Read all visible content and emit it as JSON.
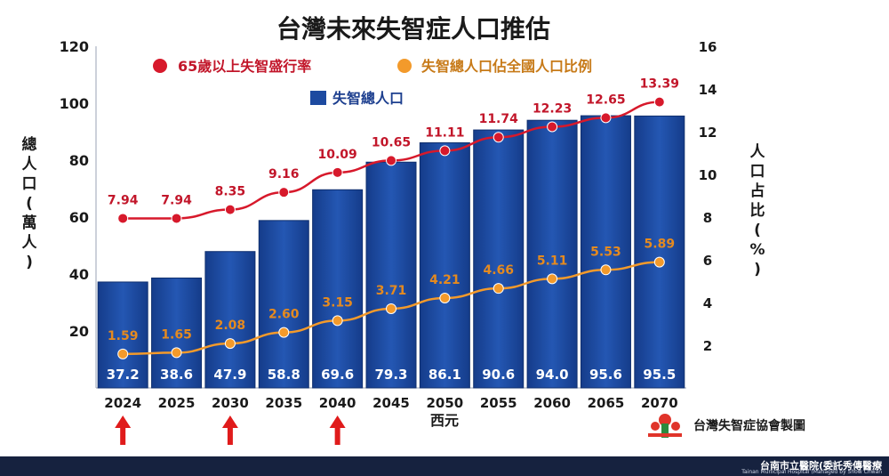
{
  "chart_data": {
    "type": "bar",
    "title": "台灣未來失智症人口推估",
    "categories": [
      "2024",
      "2025",
      "2030",
      "2035",
      "2040",
      "2045",
      "2050",
      "2055",
      "2060",
      "2065",
      "2070"
    ],
    "xlabel": "西元",
    "ylabel_left": "總人口(萬人)",
    "ylabel_right": "人口占比(%)",
    "ylim_left": [
      0,
      120
    ],
    "yticks_left": [
      "20",
      "40",
      "60",
      "80",
      "100",
      "120"
    ],
    "ylim_right": [
      0,
      16
    ],
    "yticks_right": [
      "2",
      "4",
      "6",
      "8",
      "10",
      "12",
      "14",
      "16"
    ],
    "legend_position": "top",
    "series": [
      {
        "name": "失智總人口",
        "type": "bar",
        "axis": "left",
        "color": "#1d4aa0",
        "values": [
          37.2,
          38.6,
          47.9,
          58.8,
          69.6,
          79.3,
          86.1,
          90.6,
          94.0,
          95.6,
          95.5
        ],
        "labels": [
          "37.2",
          "38.6",
          "47.9",
          "58.8",
          "69.6",
          "79.3",
          "86.1",
          "90.6",
          "94.0",
          "95.6",
          "95.5"
        ]
      },
      {
        "name": "65歲以上失智盛行率",
        "type": "line",
        "axis": "right",
        "color": "#d7192b",
        "values": [
          7.94,
          7.94,
          8.35,
          9.16,
          10.09,
          10.65,
          11.11,
          11.74,
          12.23,
          12.65,
          13.39
        ],
        "labels": [
          "7.94",
          "7.94",
          "8.35",
          "9.16",
          "10.09",
          "10.65",
          "11.11",
          "11.74",
          "12.23",
          "12.65",
          "13.39"
        ]
      },
      {
        "name": "失智總人口佔全國人口比例",
        "type": "line",
        "axis": "right",
        "color": "#f39a2b",
        "values": [
          1.59,
          1.65,
          2.08,
          2.6,
          3.15,
          3.71,
          4.21,
          4.66,
          5.11,
          5.53,
          5.89
        ],
        "labels": [
          "1.59",
          "1.65",
          "2.08",
          "2.60",
          "3.15",
          "3.71",
          "4.21",
          "4.66",
          "5.11",
          "5.53",
          "5.89"
        ]
      }
    ],
    "highlighted_years": [
      "2024",
      "2030",
      "2040"
    ],
    "highlight_color": "#e01b1b",
    "source": "台灣失智症協會製圖"
  },
  "footer": {
    "hospital": "台南市立醫院(委託秀傳醫療",
    "hospital_en": "Tainan Municipal Hospital (Managed by Show Chwan"
  }
}
